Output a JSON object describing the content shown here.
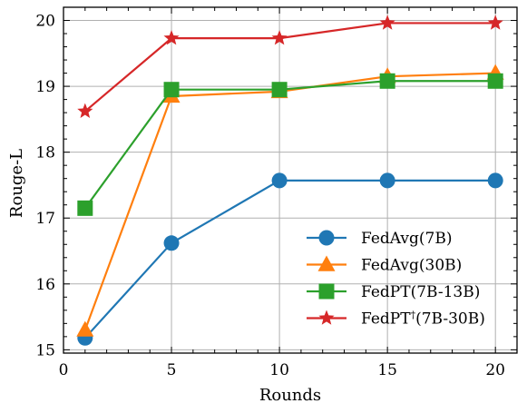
{
  "chart_data": {
    "type": "line",
    "xlabel": "Rounds",
    "ylabel": "Rouge-L",
    "xlim": [
      0,
      21
    ],
    "ylim": [
      14.95,
      20.2
    ],
    "xticks": [
      0,
      5,
      10,
      15,
      20
    ],
    "yticks": [
      15,
      16,
      17,
      18,
      19,
      20
    ],
    "x_minor_step": 1,
    "y_minor_step": 0.2,
    "grid": true,
    "legend_position": "lower-right",
    "x": [
      1,
      5,
      10,
      15,
      20
    ],
    "series": [
      {
        "name": "FedAvg(7B)",
        "name_parts": [
          "FedAvg(7B)"
        ],
        "color": "#1f77b4",
        "marker": "circle",
        "values": [
          15.18,
          16.62,
          17.57,
          17.57,
          17.57
        ]
      },
      {
        "name": "FedAvg(30B)",
        "name_parts": [
          "FedAvg(30B)"
        ],
        "color": "#ff7f0e",
        "marker": "triangle",
        "values": [
          15.3,
          18.85,
          18.92,
          19.15,
          19.2
        ]
      },
      {
        "name": "FedPT(7B-13B)",
        "name_parts": [
          "FedPT(7B-13B)"
        ],
        "color": "#2ca02c",
        "marker": "square",
        "values": [
          17.15,
          18.95,
          18.95,
          19.08,
          19.08
        ]
      },
      {
        "name": "FedPT†(7B-30B)",
        "name_parts": [
          "FedPT",
          "†",
          "(7B-30B)"
        ],
        "color": "#d62728",
        "marker": "star",
        "values": [
          18.62,
          19.73,
          19.73,
          19.96,
          19.96
        ]
      }
    ]
  }
}
